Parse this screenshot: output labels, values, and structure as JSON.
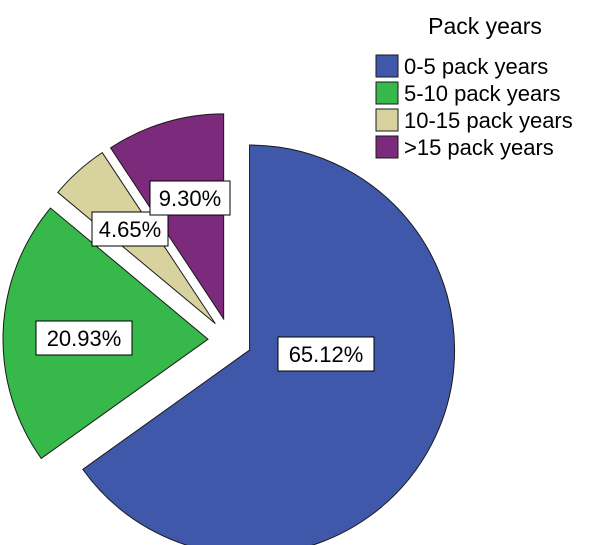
{
  "chart_data": {
    "type": "pie",
    "legend": {
      "title": "Pack years",
      "placement": "top-right"
    },
    "slices": [
      {
        "name": "0-5 pack years",
        "value": 65.12,
        "label": "65.12%",
        "color": "#3f58a9"
      },
      {
        "name": "5-10 pack years",
        "value": 20.93,
        "label": "20.93%",
        "color": "#36b84a"
      },
      {
        "name": "10-15 pack years",
        "value": 4.65,
        "label": "4.65%",
        "color": "#d8d39e"
      },
      {
        "name": ">15 pack years",
        "value": 9.3,
        "label": "9.30%",
        "color": "#7c2a7b"
      }
    ],
    "exploded": true,
    "start_angle_deg": 0,
    "direction": "clockwise"
  }
}
